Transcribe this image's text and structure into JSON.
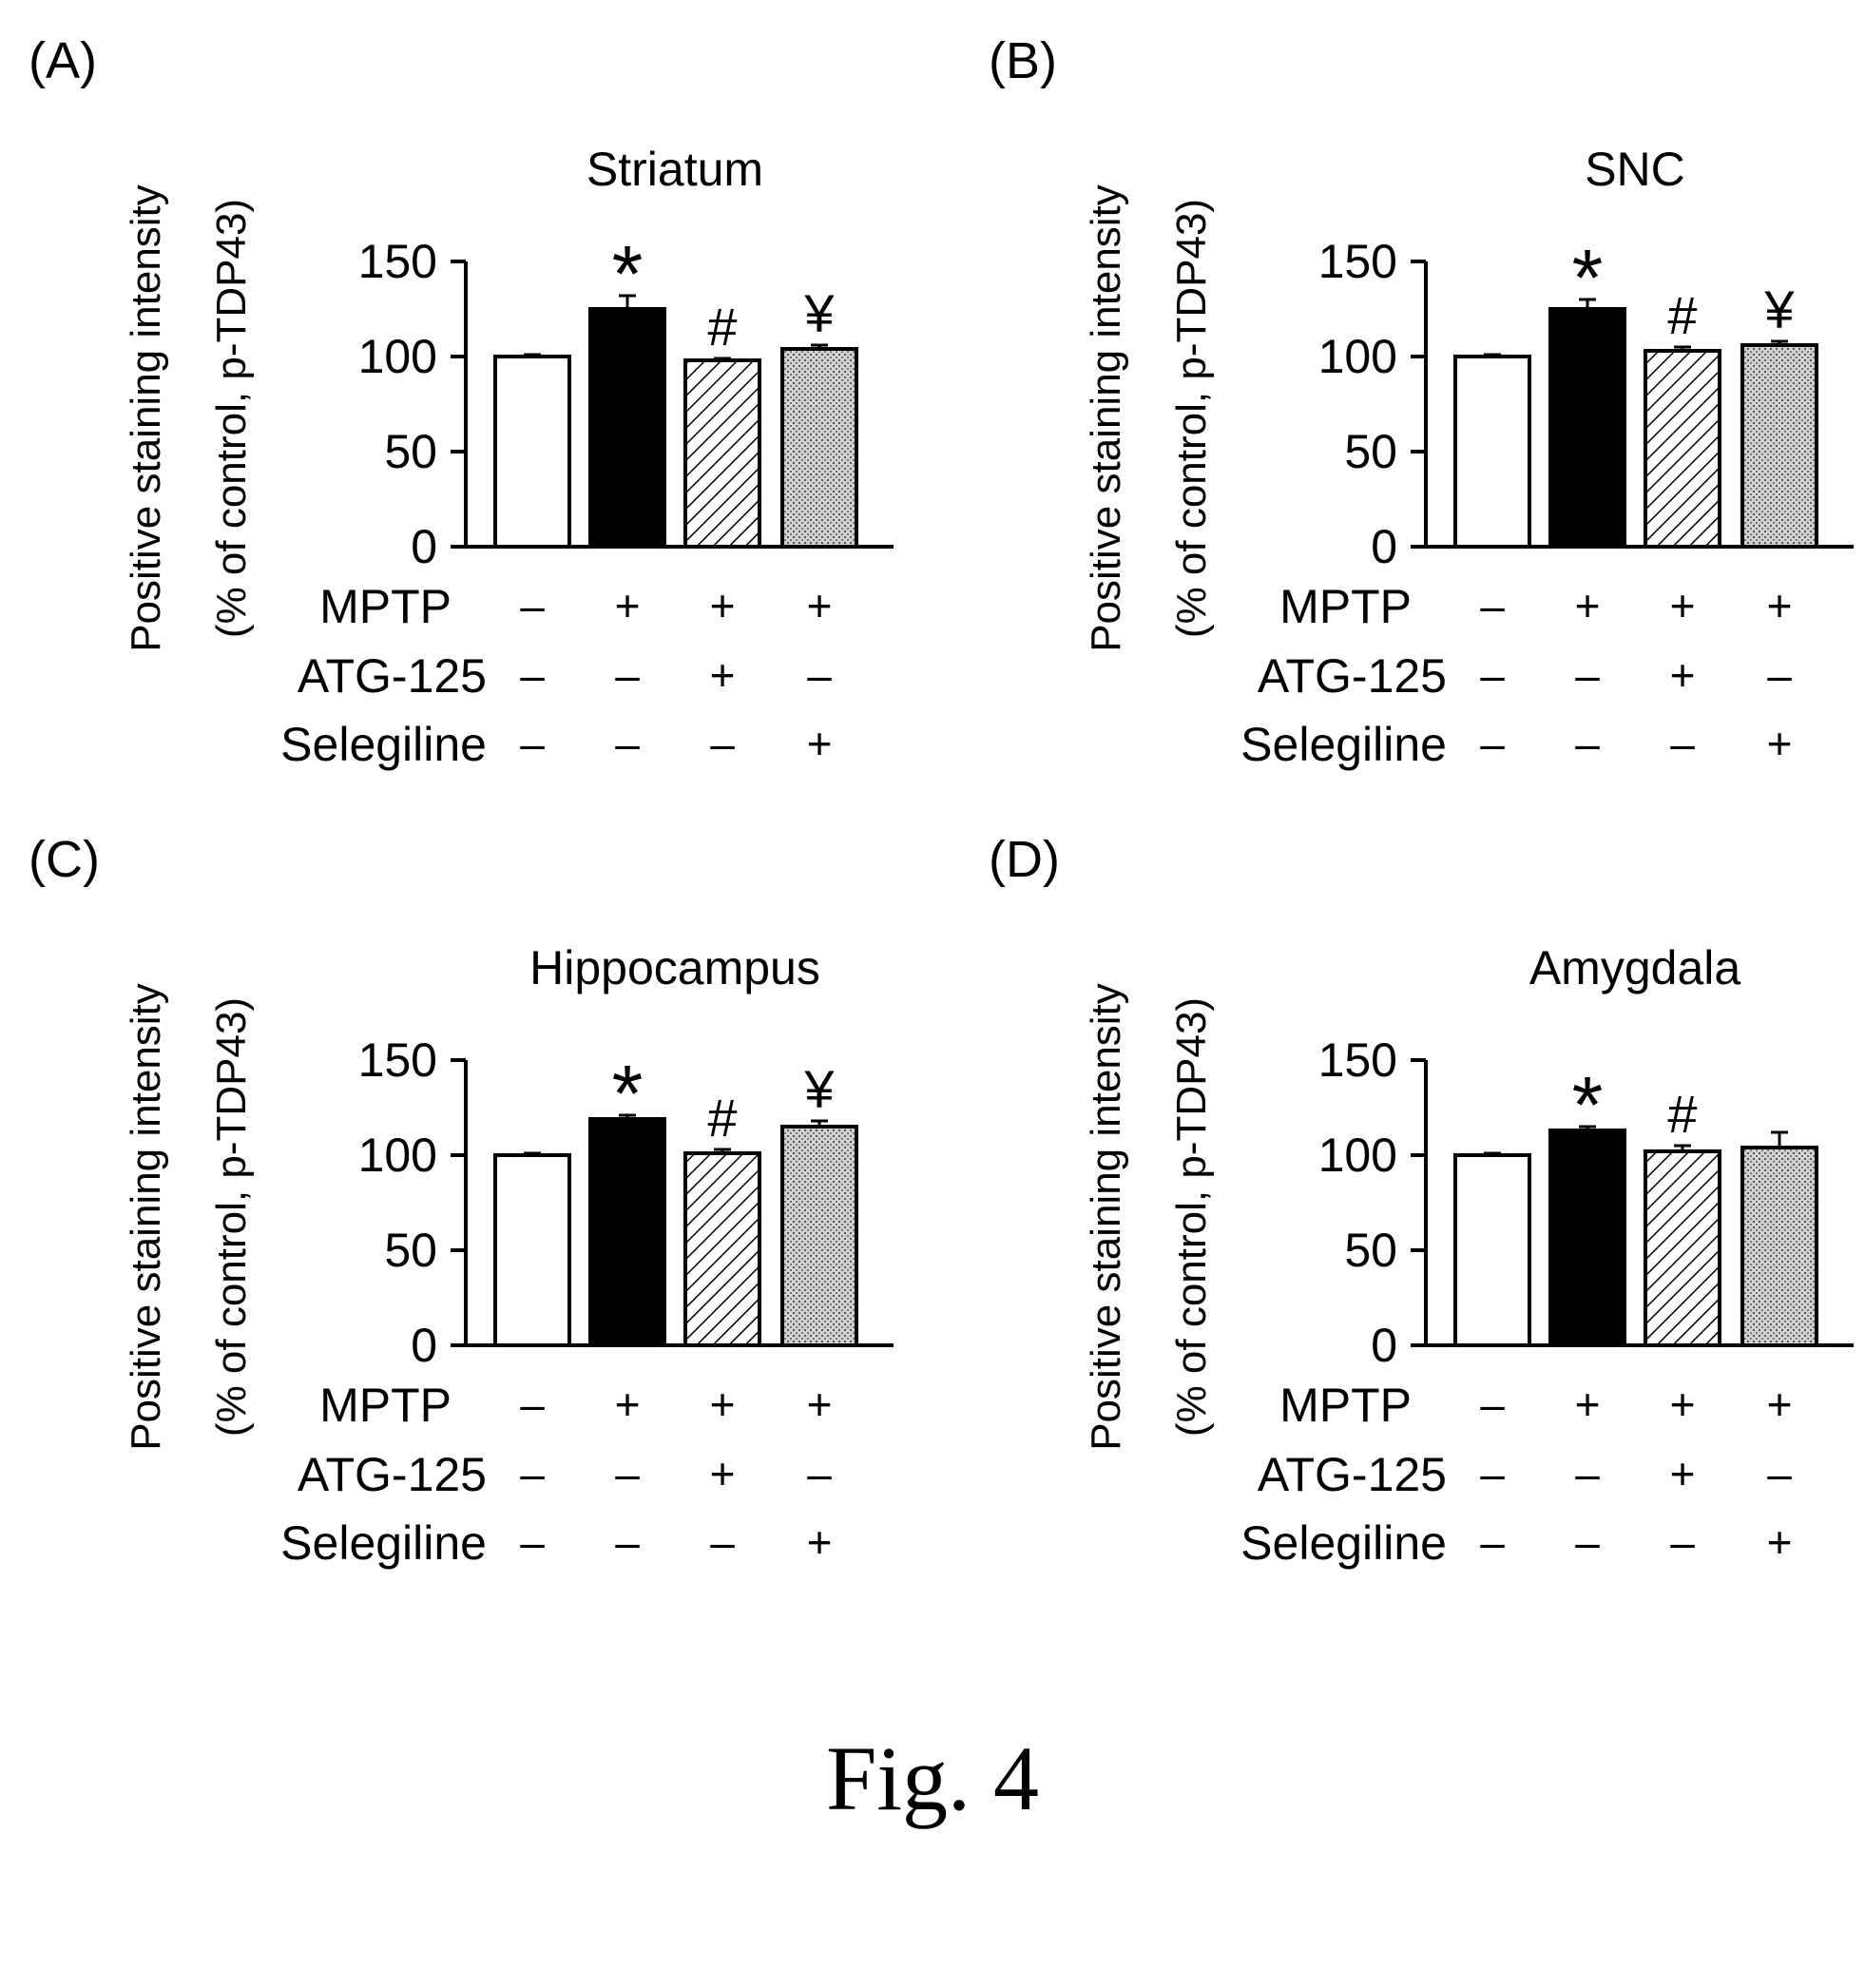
{
  "figure_caption": "Fig. 4",
  "colors": {
    "control": "#ffffff",
    "mptp": "#000000",
    "atg125": "#ffffff",
    "selegiline": "#c8c8c8",
    "stroke": "#000000"
  },
  "chart_data": [
    {
      "panel": "(A)",
      "type": "bar",
      "title": "Striatum",
      "ylabel": [
        "Positive staining intensity",
        "(% of control, p-TDP43)"
      ],
      "ylim": [
        0,
        150
      ],
      "yticks": [
        "0",
        "50",
        "100",
        "150"
      ],
      "values": [
        100,
        125,
        98,
        104
      ],
      "errors": [
        1,
        7,
        1,
        2
      ],
      "bar_fills": [
        "white",
        "black",
        "hatched",
        "dotted"
      ],
      "significance": [
        "",
        "*",
        "#",
        "¥"
      ],
      "treatments": [
        {
          "label": "MPTP",
          "marks": [
            "–",
            "+",
            "+",
            "+"
          ]
        },
        {
          "label": "ATG-125",
          "marks": [
            "–",
            "–",
            "+",
            "–"
          ]
        },
        {
          "label": "Selegiline",
          "marks": [
            "–",
            "–",
            "–",
            "+"
          ]
        }
      ]
    },
    {
      "panel": "(B)",
      "type": "bar",
      "title": "SNC",
      "ylabel": [
        "Positive staining intensity",
        "(% of control, p-TDP43)"
      ],
      "ylim": [
        0,
        150
      ],
      "yticks": [
        "0",
        "50",
        "100",
        "150"
      ],
      "values": [
        100,
        125,
        103,
        106
      ],
      "errors": [
        1,
        5,
        2,
        2
      ],
      "bar_fills": [
        "white",
        "black",
        "hatched",
        "dotted"
      ],
      "significance": [
        "",
        "*",
        "#",
        "¥"
      ],
      "treatments": [
        {
          "label": "MPTP",
          "marks": [
            "–",
            "+",
            "+",
            "+"
          ]
        },
        {
          "label": "ATG-125",
          "marks": [
            "–",
            "–",
            "+",
            "–"
          ]
        },
        {
          "label": "Selegiline",
          "marks": [
            "–",
            "–",
            "–",
            "+"
          ]
        }
      ]
    },
    {
      "panel": "(C)",
      "type": "bar",
      "title": "Hippocampus",
      "ylabel": [
        "Positive staining intensity",
        "(% of control, p-TDP43)"
      ],
      "ylim": [
        0,
        150
      ],
      "yticks": [
        "0",
        "50",
        "100",
        "150"
      ],
      "values": [
        100,
        119,
        101,
        115
      ],
      "errors": [
        1,
        2,
        2,
        3
      ],
      "bar_fills": [
        "white",
        "black",
        "hatched",
        "dotted"
      ],
      "significance": [
        "",
        "*",
        "#",
        "¥"
      ],
      "treatments": [
        {
          "label": "MPTP",
          "marks": [
            "–",
            "+",
            "+",
            "+"
          ]
        },
        {
          "label": "ATG-125",
          "marks": [
            "–",
            "–",
            "+",
            "–"
          ]
        },
        {
          "label": "Selegiline",
          "marks": [
            "–",
            "–",
            "–",
            "+"
          ]
        }
      ]
    },
    {
      "panel": "(D)",
      "type": "bar",
      "title": "Amygdala",
      "ylabel": [
        "Positive staining intensity",
        "(% of control, p-TDP43)"
      ],
      "ylim": [
        0,
        150
      ],
      "yticks": [
        "0",
        "50",
        "100",
        "150"
      ],
      "values": [
        100,
        113,
        102,
        104
      ],
      "errors": [
        1,
        2,
        3,
        8
      ],
      "bar_fills": [
        "white",
        "black",
        "hatched",
        "dotted"
      ],
      "significance": [
        "",
        "*",
        "#",
        ""
      ],
      "treatments": [
        {
          "label": "MPTP",
          "marks": [
            "–",
            "+",
            "+",
            "+"
          ]
        },
        {
          "label": "ATG-125",
          "marks": [
            "–",
            "–",
            "+",
            "–"
          ]
        },
        {
          "label": "Selegiline",
          "marks": [
            "–",
            "–",
            "–",
            "+"
          ]
        }
      ]
    }
  ]
}
